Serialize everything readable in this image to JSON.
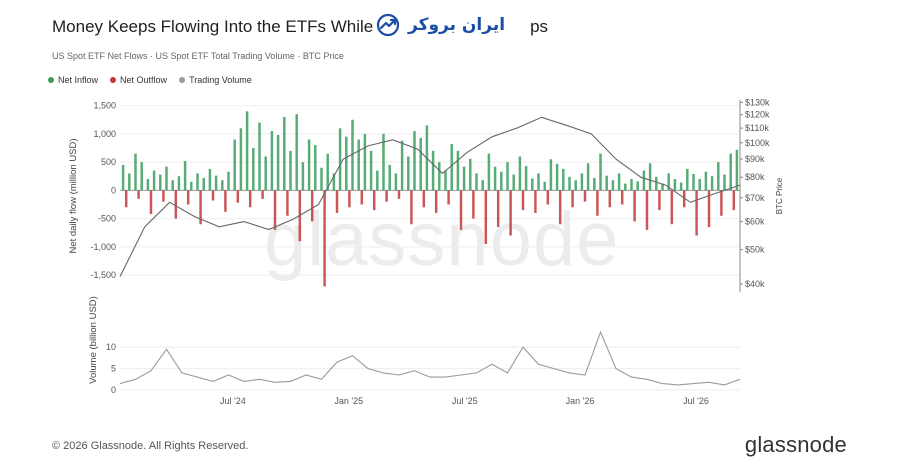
{
  "header": {
    "title_left": "Money Keeps Flowing Into the ETFs While T",
    "title_right": "ps",
    "overlay_logo_text": "ایران بروکر",
    "subtitle": "US Spot ETF Net Flows · US Spot ETF Total Trading Volume · BTC Price"
  },
  "legend": [
    {
      "label": "Net Inflow",
      "color": "#3a9d5d"
    },
    {
      "label": "Net Outflow",
      "color": "#c0393b"
    },
    {
      "label": "Trading Volume",
      "color": "#9a9a9a"
    }
  ],
  "chart_data": [
    {
      "type": "bar",
      "ylabel": "Net daily flow (million USD)",
      "y2label": "BTC Price",
      "ylim": [
        -1800,
        1600
      ],
      "y_ticks": [
        "1,500",
        "1,000",
        "500",
        "0",
        "-500",
        "-1,000",
        "-1,500"
      ],
      "y2_ticks": [
        "$130k",
        "$120k",
        "$110k",
        "$100k",
        "$90k",
        "$80k",
        "$70k",
        "$60k",
        "$50k",
        "$40k"
      ],
      "y2_scale": "log",
      "x_ticks": [
        "Jul '24",
        "Jan '25",
        "Jul '25",
        "Jan '26",
        "Jul '26"
      ],
      "series": [
        {
          "name": "Net Inflow",
          "color": "#3a9d5d",
          "x": [
            1,
            3,
            5,
            7,
            9,
            11,
            13,
            15,
            17,
            19,
            21,
            23,
            25,
            27,
            29,
            31,
            33,
            35,
            37,
            39,
            41,
            43,
            45,
            47,
            49,
            51,
            53,
            55,
            57,
            59,
            61,
            63,
            65,
            67,
            69,
            71,
            73,
            75,
            77,
            79,
            81,
            83,
            85,
            87,
            89,
            91,
            93,
            95,
            97,
            99,
            101,
            103,
            105,
            107,
            109,
            111,
            113,
            115,
            117,
            119,
            121,
            123,
            125,
            127,
            129,
            131,
            133,
            135,
            137,
            139,
            141,
            143,
            145,
            147,
            149,
            151,
            153,
            155,
            157,
            159,
            161,
            163,
            165,
            167,
            169,
            171,
            173,
            175,
            177,
            179,
            181,
            183,
            185,
            187,
            189,
            191,
            193,
            195,
            197,
            199
          ],
          "values": [
            450,
            300,
            650,
            500,
            200,
            350,
            280,
            420,
            180,
            250,
            520,
            150,
            300,
            220,
            380,
            260,
            180,
            330,
            900,
            1100,
            1400,
            750,
            1200,
            600,
            1050,
            980,
            1300,
            700,
            1350,
            500,
            900,
            800,
            400,
            650,
            300,
            1100,
            950,
            1250,
            900,
            1000,
            700,
            350,
            1000,
            450,
            300,
            880,
            600,
            1050,
            930,
            1150,
            700,
            500,
            350,
            820,
            700,
            420,
            560,
            300,
            180,
            650,
            420,
            330,
            500,
            280,
            600,
            430,
            210,
            300,
            150,
            550,
            470,
            380,
            240,
            180,
            300,
            480,
            220,
            650,
            260,
            180,
            300,
            120,
            200,
            160,
            350,
            480,
            240,
            120,
            300,
            200,
            140,
            380,
            290,
            200,
            330,
            250,
            500,
            280,
            650,
            720
          ]
        },
        {
          "name": "Net Outflow",
          "color": "#c0393b",
          "x": [
            2,
            6,
            10,
            14,
            18,
            22,
            26,
            30,
            34,
            38,
            42,
            46,
            50,
            54,
            58,
            62,
            66,
            70,
            74,
            78,
            82,
            86,
            90,
            94,
            98,
            102,
            106,
            110,
            114,
            118,
            122,
            126,
            130,
            134,
            138,
            142,
            146,
            150,
            154,
            158,
            162,
            166,
            170,
            174,
            178,
            182,
            186,
            190,
            194,
            198
          ],
          "values": [
            -300,
            -150,
            -420,
            -200,
            -500,
            -250,
            -600,
            -180,
            -380,
            -220,
            -300,
            -150,
            -700,
            -450,
            -900,
            -550,
            -1700,
            -400,
            -300,
            -250,
            -350,
            -200,
            -150,
            -600,
            -300,
            -400,
            -250,
            -700,
            -500,
            -950,
            -650,
            -800,
            -350,
            -400,
            -250,
            -600,
            -300,
            -200,
            -450,
            -300,
            -250,
            -550,
            -700,
            -350,
            -600,
            -300,
            -800,
            -650,
            -450,
            -350
          ]
        },
        {
          "name": "BTC Price",
          "color": "#666666",
          "type": "line",
          "x": [
            0,
            8,
            16,
            24,
            32,
            40,
            48,
            56,
            64,
            72,
            80,
            88,
            96,
            104,
            112,
            120,
            128,
            136,
            144,
            152,
            160,
            168,
            176,
            184,
            192,
            200
          ],
          "values": [
            42000,
            58000,
            68000,
            62000,
            58000,
            60000,
            57000,
            61000,
            67000,
            90000,
            98000,
            102000,
            96000,
            82000,
            94000,
            104000,
            110000,
            118000,
            112000,
            106000,
            90000,
            80000,
            76000,
            68000,
            72000,
            76000
          ]
        }
      ]
    },
    {
      "type": "line",
      "ylabel": "Volume (billion USD)",
      "ylim": [
        0,
        14
      ],
      "y_ticks": [
        "10",
        "5",
        "0"
      ],
      "x_ticks": [
        "Jul '24",
        "Jan '25",
        "Jul '25",
        "Jan '26",
        "Jul '26"
      ],
      "series": [
        {
          "name": "Trading Volume",
          "color": "#9a9a9a",
          "x": [
            0,
            5,
            10,
            15,
            20,
            25,
            30,
            35,
            40,
            45,
            50,
            55,
            60,
            65,
            70,
            75,
            80,
            85,
            90,
            95,
            100,
            105,
            110,
            115,
            120,
            125,
            130,
            135,
            140,
            145,
            150,
            155,
            160,
            165,
            170,
            175,
            180,
            185,
            190,
            195,
            200
          ],
          "values": [
            1.5,
            2.5,
            4.5,
            9.5,
            4,
            3,
            2,
            3.5,
            2,
            2.5,
            1.8,
            2,
            3.5,
            2.5,
            6.5,
            8,
            5,
            4,
            3.5,
            4.5,
            3,
            3,
            3.5,
            4,
            6,
            4,
            10,
            6,
            5,
            4,
            3.5,
            13.5,
            5,
            3,
            2.5,
            1.5,
            1.2,
            1.5,
            1.8,
            1.2,
            2.5
          ]
        }
      ]
    }
  ],
  "watermark": "glassnode",
  "footer": {
    "copyright": "© 2026 Glassnode. All Rights Reserved.",
    "brand": "glassnode"
  }
}
